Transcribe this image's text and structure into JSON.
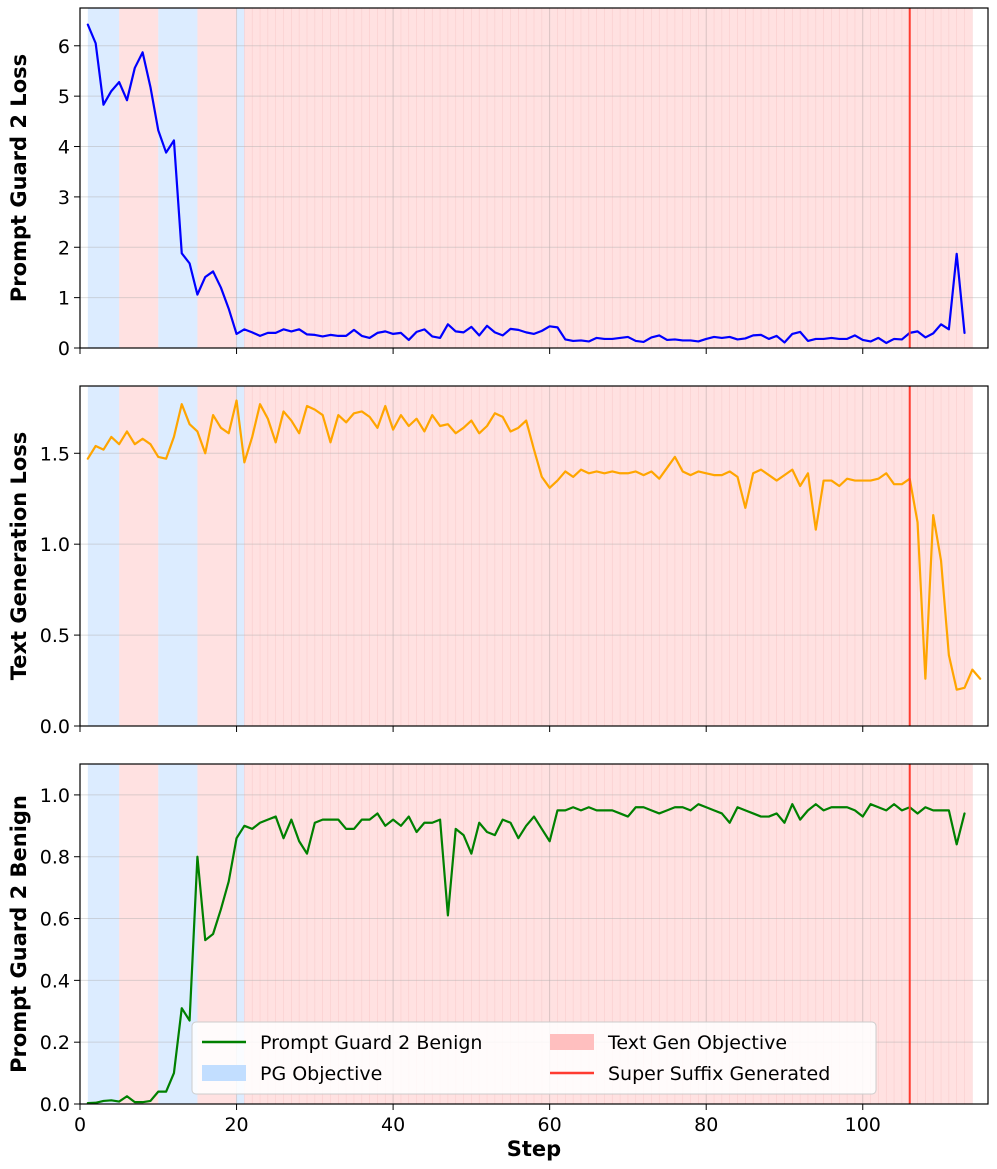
{
  "chart_data": [
    {
      "type": "line",
      "ylabel": "Prompt Guard 2 Loss",
      "xlabel": "",
      "xlim": [
        0,
        116
      ],
      "ylim": [
        0,
        6.75
      ],
      "xticks": [
        0,
        20,
        40,
        60,
        80,
        100
      ],
      "yticks": [
        "0",
        "1",
        "2",
        "3",
        "4",
        "5",
        "6"
      ],
      "ytick_values": [
        0,
        1,
        2,
        3,
        4,
        5,
        6
      ],
      "grid": true,
      "series": [
        {
          "name": "Prompt Guard 2 Loss",
          "color": "#0000ff",
          "x_start": 1,
          "values": [
            6.42,
            6.05,
            4.83,
            5.1,
            5.28,
            4.92,
            5.56,
            5.87,
            5.18,
            4.32,
            3.88,
            4.12,
            1.88,
            1.68,
            1.06,
            1.41,
            1.52,
            1.2,
            0.78,
            0.28,
            0.37,
            0.31,
            0.24,
            0.3,
            0.3,
            0.37,
            0.33,
            0.37,
            0.27,
            0.26,
            0.23,
            0.26,
            0.24,
            0.24,
            0.36,
            0.24,
            0.2,
            0.3,
            0.33,
            0.28,
            0.3,
            0.16,
            0.32,
            0.37,
            0.23,
            0.2,
            0.47,
            0.33,
            0.31,
            0.42,
            0.25,
            0.44,
            0.31,
            0.25,
            0.38,
            0.36,
            0.31,
            0.28,
            0.34,
            0.43,
            0.41,
            0.17,
            0.14,
            0.15,
            0.13,
            0.2,
            0.18,
            0.18,
            0.2,
            0.22,
            0.14,
            0.12,
            0.21,
            0.25,
            0.16,
            0.17,
            0.15,
            0.15,
            0.13,
            0.18,
            0.22,
            0.2,
            0.22,
            0.17,
            0.19,
            0.25,
            0.26,
            0.18,
            0.24,
            0.11,
            0.28,
            0.32,
            0.14,
            0.18,
            0.18,
            0.2,
            0.18,
            0.18,
            0.25,
            0.16,
            0.13,
            0.2,
            0.1,
            0.18,
            0.17,
            0.3,
            0.33,
            0.21,
            0.29,
            0.47,
            0.37,
            1.87,
            0.3
          ]
        }
      ]
    },
    {
      "type": "line",
      "ylabel": "Text Generation Loss",
      "xlabel": "",
      "xlim": [
        0,
        116
      ],
      "ylim": [
        0,
        1.87
      ],
      "xticks": [
        0,
        20,
        40,
        60,
        80,
        100
      ],
      "yticks": [
        "0.0",
        "0.5",
        "1.0",
        "1.5"
      ],
      "ytick_values": [
        0,
        0.5,
        1.0,
        1.5
      ],
      "grid": true,
      "series": [
        {
          "name": "Text Generation Loss",
          "color": "#ffa500",
          "x_start": 1,
          "values": [
            1.47,
            1.54,
            1.52,
            1.59,
            1.55,
            1.62,
            1.55,
            1.58,
            1.55,
            1.48,
            1.47,
            1.59,
            1.77,
            1.66,
            1.62,
            1.5,
            1.71,
            1.64,
            1.61,
            1.79,
            1.45,
            1.59,
            1.77,
            1.69,
            1.56,
            1.73,
            1.68,
            1.61,
            1.76,
            1.74,
            1.71,
            1.56,
            1.71,
            1.67,
            1.72,
            1.73,
            1.7,
            1.64,
            1.76,
            1.63,
            1.71,
            1.65,
            1.69,
            1.62,
            1.71,
            1.65,
            1.66,
            1.61,
            1.64,
            1.68,
            1.61,
            1.65,
            1.72,
            1.7,
            1.62,
            1.64,
            1.68,
            1.52,
            1.37,
            1.31,
            1.35,
            1.4,
            1.37,
            1.41,
            1.39,
            1.4,
            1.39,
            1.4,
            1.39,
            1.39,
            1.4,
            1.38,
            1.4,
            1.36,
            1.42,
            1.48,
            1.4,
            1.38,
            1.4,
            1.39,
            1.38,
            1.38,
            1.4,
            1.37,
            1.2,
            1.39,
            1.41,
            1.38,
            1.35,
            1.38,
            1.41,
            1.32,
            1.39,
            1.08,
            1.35,
            1.35,
            1.32,
            1.36,
            1.35,
            1.35,
            1.35,
            1.36,
            1.39,
            1.33,
            1.33,
            1.36,
            1.12,
            0.26,
            1.16,
            0.91,
            0.39,
            0.2,
            0.21,
            0.31,
            0.26
          ]
        }
      ]
    },
    {
      "type": "line",
      "ylabel": "Prompt Guard 2 Benign",
      "xlabel": "Step",
      "xlim": [
        0,
        116
      ],
      "ylim": [
        0,
        1.1
      ],
      "xticks": [
        0,
        20,
        40,
        60,
        80,
        100
      ],
      "yticks": [
        "0.0",
        "0.2",
        "0.4",
        "0.6",
        "0.8",
        "1.0"
      ],
      "ytick_values": [
        0,
        0.2,
        0.4,
        0.6,
        0.8,
        1.0
      ],
      "grid": true,
      "series": [
        {
          "name": "Prompt Guard 2 Benign",
          "color": "#008000",
          "x_start": 1,
          "values": [
            0.003,
            0.004,
            0.01,
            0.012,
            0.008,
            0.025,
            0.006,
            0.006,
            0.01,
            0.04,
            0.04,
            0.1,
            0.31,
            0.27,
            0.8,
            0.53,
            0.55,
            0.63,
            0.72,
            0.86,
            0.9,
            0.89,
            0.91,
            0.92,
            0.93,
            0.86,
            0.92,
            0.85,
            0.81,
            0.91,
            0.92,
            0.92,
            0.92,
            0.89,
            0.89,
            0.92,
            0.92,
            0.94,
            0.9,
            0.92,
            0.9,
            0.93,
            0.88,
            0.91,
            0.91,
            0.92,
            0.61,
            0.89,
            0.87,
            0.81,
            0.91,
            0.88,
            0.87,
            0.92,
            0.91,
            0.86,
            0.9,
            0.93,
            0.89,
            0.85,
            0.95,
            0.95,
            0.96,
            0.95,
            0.96,
            0.95,
            0.95,
            0.95,
            0.94,
            0.93,
            0.96,
            0.96,
            0.95,
            0.94,
            0.95,
            0.96,
            0.96,
            0.95,
            0.97,
            0.96,
            0.95,
            0.94,
            0.91,
            0.96,
            0.95,
            0.94,
            0.93,
            0.93,
            0.94,
            0.91,
            0.97,
            0.92,
            0.95,
            0.97,
            0.95,
            0.96,
            0.96,
            0.96,
            0.95,
            0.93,
            0.97,
            0.96,
            0.95,
            0.97,
            0.95,
            0.96,
            0.94,
            0.96,
            0.95,
            0.95,
            0.95,
            0.84,
            0.94
          ]
        }
      ]
    }
  ],
  "background_regions": {
    "pg_objective_ranges": [
      [
        1,
        5
      ],
      [
        10,
        15
      ],
      [
        20,
        21
      ]
    ],
    "text_gen_objective_ranges": [
      [
        5,
        10
      ],
      [
        15,
        20
      ],
      [
        21,
        114
      ]
    ],
    "pg_color": "#bfdcff",
    "text_gen_color": "#ffbcbc",
    "pg_opacity": 0.55,
    "text_gen_opacity": 0.45
  },
  "super_suffix_step": 106,
  "super_suffix_color": "#ff3b30",
  "legend": {
    "location": "lower-center",
    "entries": [
      {
        "label": "Prompt Guard 2 Benign",
        "kind": "line",
        "color": "#008000"
      },
      {
        "label": "Text Gen Objective",
        "kind": "patch",
        "color": "#ffbcbc"
      },
      {
        "label": "PG Objective",
        "kind": "patch",
        "color": "#bfdcff"
      },
      {
        "label": "Super Suffix Generated",
        "kind": "line",
        "color": "#ff3b30"
      }
    ]
  }
}
